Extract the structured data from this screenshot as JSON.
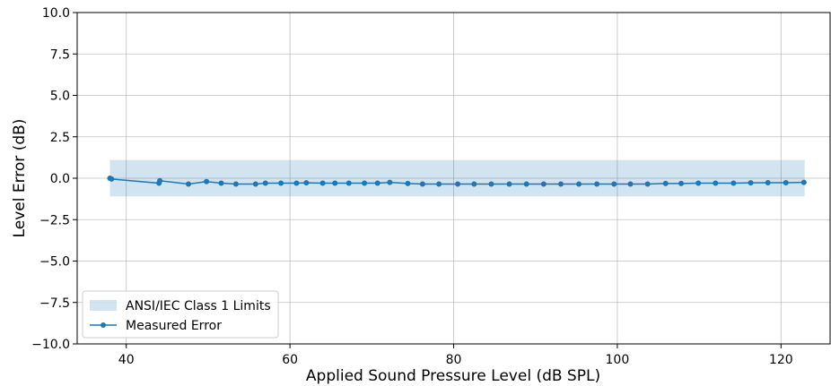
{
  "chart_data": {
    "type": "line",
    "xlabel": "Applied Sound Pressure Level (dB SPL)",
    "ylabel": "Level Error (dB)",
    "xlim": [
      34,
      126
    ],
    "ylim": [
      -10.0,
      10.0
    ],
    "x_ticks": [
      40,
      60,
      80,
      100,
      120
    ],
    "y_ticks": [
      10.0,
      7.5,
      5.0,
      2.5,
      0.0,
      -2.5,
      -5.0,
      -7.5,
      -10.0
    ],
    "x_tick_labels": [
      "40",
      "60",
      "80",
      "100",
      "120"
    ],
    "y_tick_labels": [
      "10.0",
      "7.5",
      "5.0",
      "2.5",
      "0.0",
      "−2.5",
      "−5.0",
      "−7.5",
      "−10.0"
    ],
    "grid": true,
    "legend_position": "lower-left",
    "band": {
      "name": "ANSI/IEC Class 1 Limits",
      "x_range": [
        38.0,
        122.9
      ],
      "y_lower": -1.1,
      "y_upper": 1.1,
      "color": "#1f77b4"
    },
    "series": [
      {
        "name": "Measured Error",
        "color": "#1f77b4",
        "x": [
          38.0,
          38.2,
          44.0,
          44.1,
          47.6,
          49.8,
          51.6,
          53.4,
          55.8,
          57.0,
          58.9,
          60.8,
          62.0,
          64.0,
          65.5,
          67.2,
          69.1,
          70.7,
          72.2,
          74.4,
          76.2,
          78.2,
          80.5,
          82.5,
          84.6,
          86.8,
          88.9,
          91.0,
          93.1,
          95.3,
          97.5,
          99.6,
          101.6,
          103.7,
          105.9,
          107.8,
          109.9,
          112.0,
          114.2,
          116.3,
          118.4,
          120.6,
          122.8
        ],
        "values": [
          0.0,
          -0.05,
          -0.3,
          -0.15,
          -0.35,
          -0.2,
          -0.3,
          -0.35,
          -0.35,
          -0.3,
          -0.3,
          -0.3,
          -0.28,
          -0.3,
          -0.3,
          -0.3,
          -0.3,
          -0.3,
          -0.25,
          -0.32,
          -0.35,
          -0.35,
          -0.35,
          -0.35,
          -0.35,
          -0.35,
          -0.35,
          -0.35,
          -0.35,
          -0.35,
          -0.35,
          -0.35,
          -0.35,
          -0.35,
          -0.32,
          -0.32,
          -0.3,
          -0.3,
          -0.3,
          -0.28,
          -0.27,
          -0.27,
          -0.25
        ]
      }
    ]
  }
}
